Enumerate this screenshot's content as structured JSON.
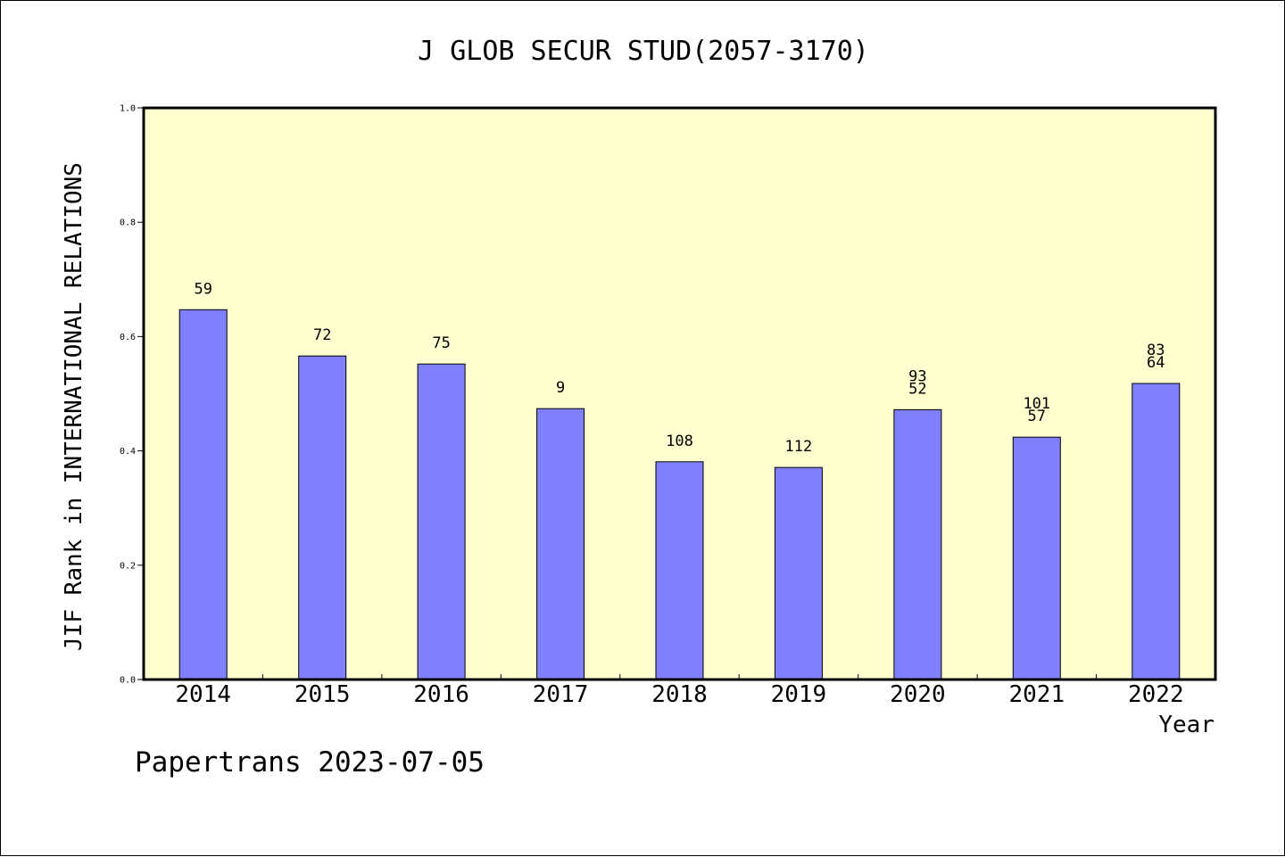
{
  "chart_data": {
    "type": "bar",
    "title": "J GLOB SECUR STUD(2057-3170)",
    "xlabel": "Year",
    "ylabel": "JIF Rank in INTERNATIONAL RELATIONS",
    "ylim": [
      0,
      1.0
    ],
    "yticks": [
      "0.0",
      "0.2",
      "0.4",
      "0.6",
      "0.8",
      "1.0"
    ],
    "categories": [
      "2014",
      "2015",
      "2016",
      "2017",
      "2018",
      "2019",
      "2020",
      "2021",
      "2022"
    ],
    "values": [
      0.647,
      0.566,
      0.552,
      0.474,
      0.381,
      0.371,
      0.472,
      0.424,
      0.518
    ],
    "labels": [
      [
        "59"
      ],
      [
        "72"
      ],
      [
        "75"
      ],
      [
        "9"
      ],
      [
        "108"
      ],
      [
        "112"
      ],
      [
        "93",
        "52"
      ],
      [
        "101",
        "57"
      ],
      [
        "83",
        "64"
      ]
    ],
    "grid": false,
    "colors": {
      "plot_background": "#ffffd0",
      "bar": "#8080ff"
    }
  },
  "footer": {
    "text": "Papertrans 2023-07-05"
  }
}
